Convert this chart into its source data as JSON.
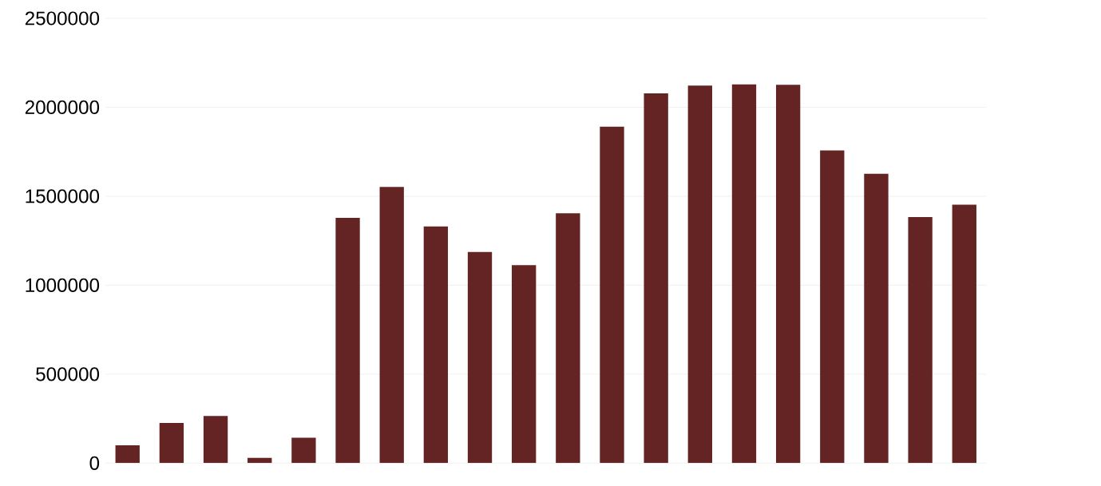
{
  "chart_data": {
    "type": "bar",
    "categories": [
      null,
      null,
      null,
      null,
      null,
      null,
      null,
      null,
      null,
      null,
      null,
      null,
      null,
      null,
      null,
      null,
      null,
      null,
      null,
      null
    ],
    "values": [
      100000,
      226000,
      265000,
      30000,
      143000,
      1378000,
      1552000,
      1330000,
      1187000,
      1113000,
      1404000,
      1891000,
      2078000,
      2122000,
      2130000,
      2126000,
      1757000,
      1626000,
      1383000,
      1452000
    ],
    "color": "#632423",
    "ylim": [
      0,
      2500000
    ],
    "yticks": [
      0,
      500000,
      1000000,
      1500000,
      2000000,
      2500000
    ],
    "grid": "y"
  }
}
